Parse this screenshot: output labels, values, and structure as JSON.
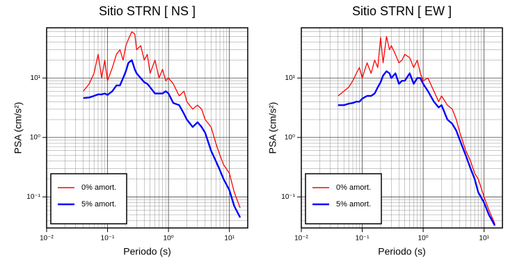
{
  "chart_data": [
    {
      "type": "line",
      "title": "Sitio STRN [ NS ]",
      "x_label": "Periodo (s)",
      "y_label": "PSA (cm/s²)",
      "xscale": "log",
      "yscale": "log",
      "grid": true,
      "legend": "lower left",
      "xlim": [
        0.01,
        20
      ],
      "ylim": [
        0.03,
        70
      ],
      "xticks": [
        {
          "value": 0.01,
          "label": "10⁻²"
        },
        {
          "value": 0.1,
          "label": "10⁻¹"
        },
        {
          "value": 1,
          "label": "10⁰"
        },
        {
          "value": 10,
          "label": "10¹"
        }
      ],
      "yticks": [
        {
          "value": 0.1,
          "label": "10⁻¹"
        },
        {
          "value": 1,
          "label": "10⁰"
        },
        {
          "value": 10,
          "label": "10¹"
        }
      ],
      "x": [
        0.04,
        0.05,
        0.06,
        0.07,
        0.08,
        0.09,
        0.1,
        0.12,
        0.14,
        0.16,
        0.18,
        0.2,
        0.22,
        0.25,
        0.28,
        0.3,
        0.35,
        0.4,
        0.45,
        0.5,
        0.6,
        0.7,
        0.8,
        0.9,
        1.0,
        1.2,
        1.5,
        1.8,
        2,
        2.5,
        3,
        3.5,
        4,
        5,
        6,
        7,
        8,
        10,
        12,
        15
      ],
      "series": [
        {
          "name": "0% amort.",
          "color": "#ff0000",
          "values": [
            6,
            8,
            12,
            25,
            10,
            20,
            9,
            15,
            25,
            30,
            20,
            35,
            45,
            60,
            55,
            30,
            35,
            20,
            25,
            12,
            20,
            10,
            14,
            9,
            10,
            8,
            5,
            6,
            4,
            3,
            3.5,
            3,
            2,
            1.5,
            0.8,
            0.5,
            0.35,
            0.25,
            0.12,
            0.065
          ]
        },
        {
          "name": "5% amort.",
          "color": "#0000ff",
          "values": [
            4.6,
            4.7,
            5.0,
            5.3,
            5.3,
            5.5,
            5.2,
            6,
            7.5,
            7.5,
            10,
            13,
            18,
            20,
            14,
            12,
            10,
            8.5,
            8,
            7,
            5.5,
            5.5,
            5.5,
            6,
            5.5,
            3.8,
            3.5,
            2.5,
            2,
            1.5,
            1.8,
            1.5,
            1.2,
            0.6,
            0.4,
            0.28,
            0.2,
            0.13,
            0.07,
            0.045
          ]
        }
      ]
    },
    {
      "type": "line",
      "title": "Sitio STRN [ EW ]",
      "x_label": "Periodo (s)",
      "y_label": "PSA (cm/s²)",
      "xscale": "log",
      "yscale": "log",
      "grid": true,
      "legend": "lower left",
      "xlim": [
        0.01,
        20
      ],
      "ylim": [
        0.03,
        70
      ],
      "xticks": [
        {
          "value": 0.01,
          "label": "10⁻²"
        },
        {
          "value": 0.1,
          "label": "10⁻¹"
        },
        {
          "value": 1,
          "label": "10⁰"
        },
        {
          "value": 10,
          "label": "10¹"
        }
      ],
      "yticks": [
        {
          "value": 0.1,
          "label": "10⁻¹"
        },
        {
          "value": 1,
          "label": "10⁰"
        },
        {
          "value": 10,
          "label": "10¹"
        }
      ],
      "x": [
        0.04,
        0.05,
        0.06,
        0.07,
        0.08,
        0.09,
        0.1,
        0.12,
        0.14,
        0.16,
        0.18,
        0.2,
        0.22,
        0.25,
        0.28,
        0.3,
        0.35,
        0.4,
        0.45,
        0.5,
        0.6,
        0.7,
        0.8,
        0.9,
        1.0,
        1.2,
        1.5,
        1.8,
        2,
        2.5,
        3,
        3.5,
        4,
        5,
        6,
        7,
        8,
        10,
        12,
        15
      ],
      "series": [
        {
          "name": "0% amort.",
          "color": "#ff0000",
          "values": [
            5,
            6,
            7,
            9,
            12,
            15,
            10,
            18,
            12,
            20,
            15,
            48,
            18,
            50,
            30,
            35,
            25,
            18,
            20,
            25,
            22,
            15,
            20,
            12,
            9,
            10,
            6,
            4,
            5,
            3.5,
            3,
            2,
            1.2,
            0.6,
            0.4,
            0.25,
            0.2,
            0.1,
            0.06,
            0.035
          ]
        },
        {
          "name": "5% amort.",
          "color": "#0000ff",
          "values": [
            3.5,
            3.5,
            3.7,
            3.8,
            4,
            4,
            4.5,
            5,
            5,
            5.5,
            7,
            8.5,
            11,
            13,
            12,
            10,
            12,
            8,
            9,
            9,
            12,
            8,
            10,
            10,
            8,
            6,
            4,
            3.2,
            3.5,
            2,
            1.7,
            1.3,
            0.9,
            0.5,
            0.3,
            0.2,
            0.12,
            0.08,
            0.05,
            0.033
          ]
        }
      ]
    }
  ]
}
